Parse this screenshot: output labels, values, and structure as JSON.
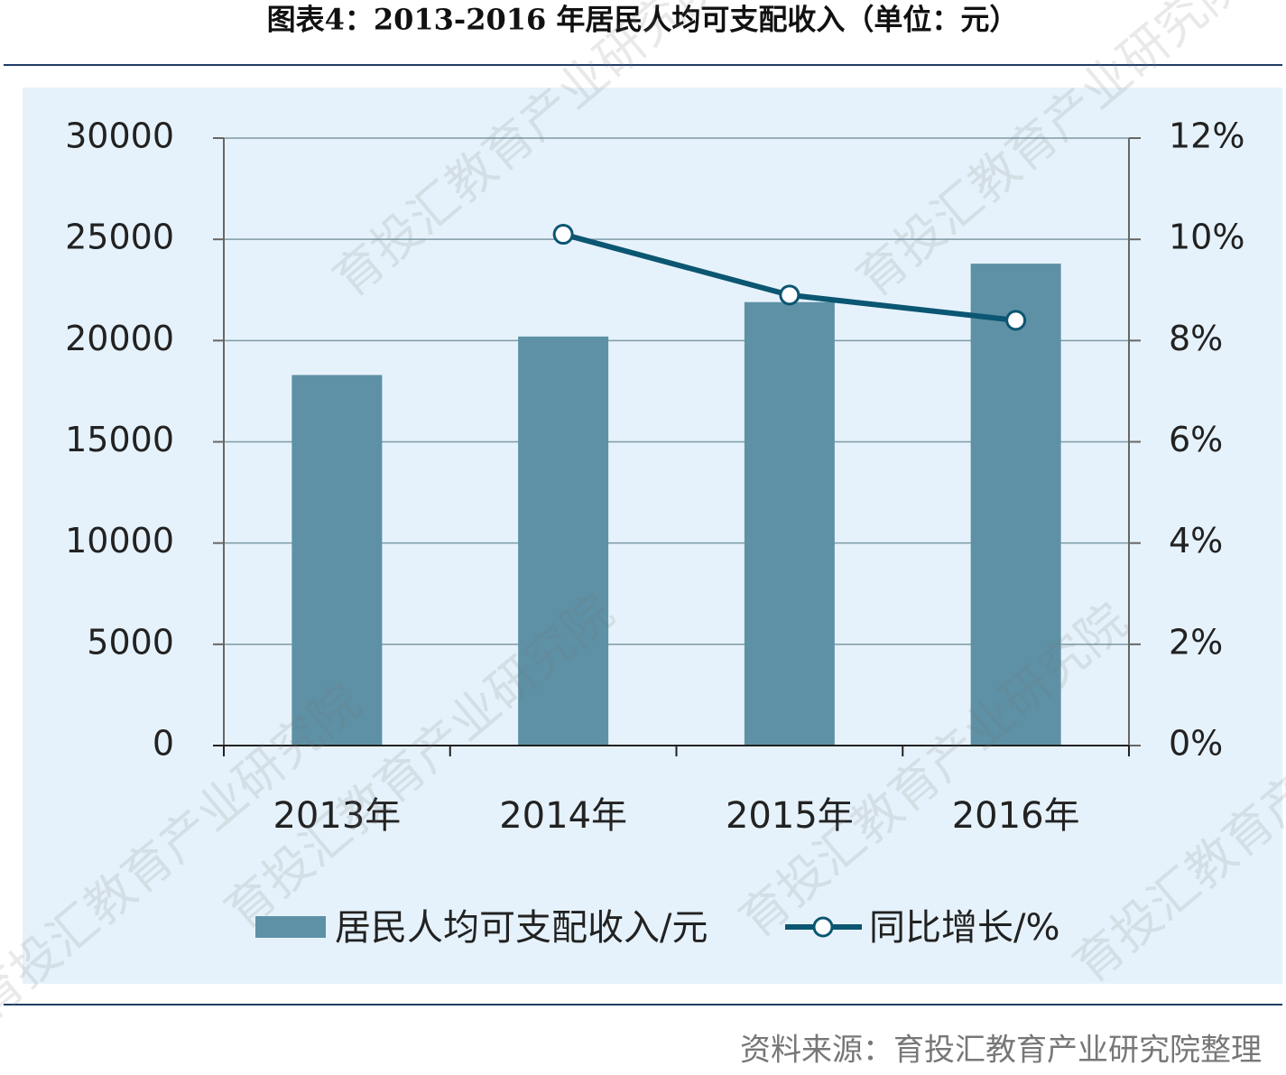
{
  "header": {
    "title": "图表4：2013-2016 年居民人均可支配收入（单位：元）"
  },
  "chart_data": {
    "type": "bar_line",
    "categories": [
      "2013年",
      "2014年",
      "2015年",
      "2016年"
    ],
    "series": [
      {
        "name": "居民人均可支配收入/元",
        "type": "bar",
        "color": "#5e91a5",
        "values": [
          18300,
          20200,
          21900,
          23800
        ]
      },
      {
        "name": "同比增长/%",
        "type": "line",
        "axis": "y2",
        "color": "#0b5672",
        "values": [
          null,
          10.1,
          8.9,
          8.4
        ]
      }
    ],
    "ylim": [
      0,
      30000
    ],
    "yticks": [
      0,
      5000,
      10000,
      15000,
      20000,
      25000,
      30000
    ],
    "y2lim": [
      0,
      12
    ],
    "y2ticks": [
      {
        "value": 0,
        "label": "0%"
      },
      {
        "value": 2,
        "label": "2%"
      },
      {
        "value": 4,
        "label": "4%"
      },
      {
        "value": 6,
        "label": "6%"
      },
      {
        "value": 8,
        "label": "8%"
      },
      {
        "value": 10,
        "label": "10%"
      },
      {
        "value": 12,
        "label": "12%"
      }
    ],
    "grid": true,
    "legend": "bottom"
  },
  "footer": {
    "source": "资料来源：育投汇教育产业研究院整理"
  },
  "watermark": "育投汇教育产业研究院"
}
